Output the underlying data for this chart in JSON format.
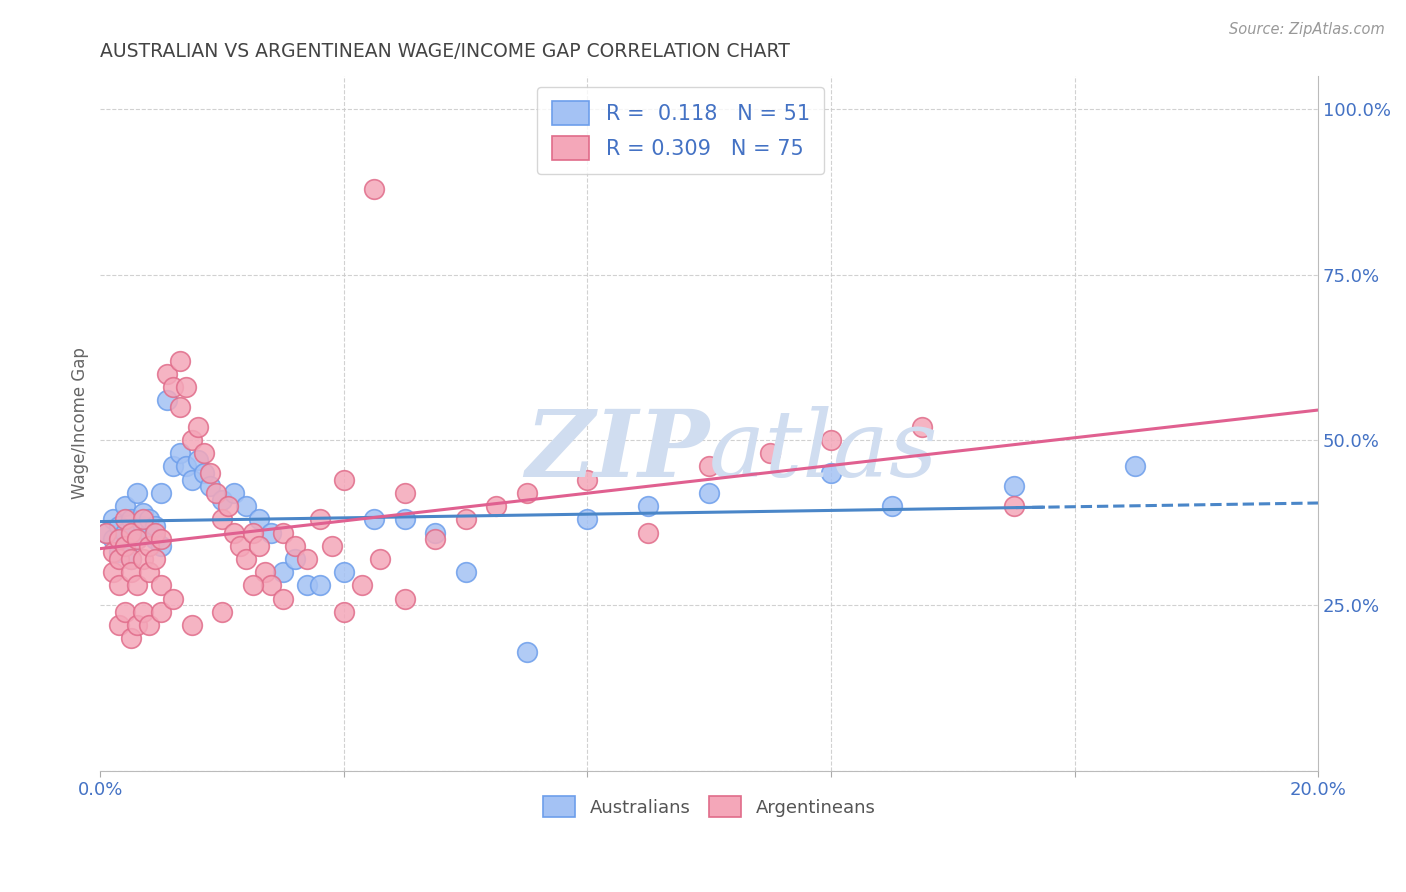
{
  "title": "AUSTRALIAN VS ARGENTINEAN WAGE/INCOME GAP CORRELATION CHART",
  "source": "Source: ZipAtlas.com",
  "ylabel": "Wage/Income Gap",
  "xmin": 0.0,
  "xmax": 0.2,
  "ymin": 0.0,
  "ymax": 1.05,
  "aus_color": "#a4c2f4",
  "arg_color": "#f4a7b9",
  "aus_edge_color": "#6d9eeb",
  "arg_edge_color": "#e06c8a",
  "aus_line_color": "#4a86c8",
  "arg_line_color": "#e06090",
  "watermark_color": "#d0ddf0",
  "R_aus": 0.118,
  "N_aus": 51,
  "R_arg": 0.309,
  "N_arg": 75,
  "background_color": "#ffffff",
  "grid_color": "#cccccc",
  "title_color": "#444444",
  "axis_label_color": "#4472c4",
  "aus_x": [
    0.001,
    0.002,
    0.002,
    0.003,
    0.003,
    0.004,
    0.004,
    0.004,
    0.005,
    0.005,
    0.005,
    0.006,
    0.006,
    0.007,
    0.007,
    0.008,
    0.008,
    0.009,
    0.009,
    0.01,
    0.01,
    0.011,
    0.012,
    0.013,
    0.014,
    0.015,
    0.016,
    0.017,
    0.018,
    0.02,
    0.022,
    0.024,
    0.026,
    0.028,
    0.03,
    0.032,
    0.034,
    0.036,
    0.04,
    0.045,
    0.05,
    0.055,
    0.06,
    0.07,
    0.08,
    0.09,
    0.1,
    0.12,
    0.13,
    0.15,
    0.17
  ],
  "aus_y": [
    0.36,
    0.35,
    0.38,
    0.37,
    0.33,
    0.36,
    0.34,
    0.4,
    0.38,
    0.36,
    0.32,
    0.35,
    0.42,
    0.37,
    0.39,
    0.36,
    0.38,
    0.35,
    0.37,
    0.34,
    0.42,
    0.56,
    0.46,
    0.48,
    0.46,
    0.44,
    0.47,
    0.45,
    0.43,
    0.41,
    0.42,
    0.4,
    0.38,
    0.36,
    0.3,
    0.32,
    0.28,
    0.28,
    0.3,
    0.38,
    0.38,
    0.36,
    0.3,
    0.18,
    0.38,
    0.4,
    0.42,
    0.45,
    0.4,
    0.43,
    0.46
  ],
  "arg_x": [
    0.001,
    0.002,
    0.002,
    0.003,
    0.003,
    0.003,
    0.004,
    0.004,
    0.005,
    0.005,
    0.005,
    0.006,
    0.006,
    0.007,
    0.007,
    0.008,
    0.008,
    0.009,
    0.009,
    0.01,
    0.01,
    0.011,
    0.012,
    0.013,
    0.013,
    0.014,
    0.015,
    0.016,
    0.017,
    0.018,
    0.019,
    0.02,
    0.021,
    0.022,
    0.023,
    0.024,
    0.025,
    0.026,
    0.027,
    0.028,
    0.03,
    0.032,
    0.034,
    0.036,
    0.038,
    0.04,
    0.043,
    0.046,
    0.05,
    0.055,
    0.06,
    0.065,
    0.07,
    0.08,
    0.09,
    0.1,
    0.11,
    0.12,
    0.135,
    0.15,
    0.003,
    0.004,
    0.005,
    0.006,
    0.007,
    0.008,
    0.01,
    0.012,
    0.015,
    0.02,
    0.025,
    0.03,
    0.04,
    0.05,
    0.045
  ],
  "arg_y": [
    0.36,
    0.33,
    0.3,
    0.35,
    0.32,
    0.28,
    0.38,
    0.34,
    0.36,
    0.32,
    0.3,
    0.35,
    0.28,
    0.32,
    0.38,
    0.34,
    0.3,
    0.36,
    0.32,
    0.35,
    0.28,
    0.6,
    0.58,
    0.62,
    0.55,
    0.58,
    0.5,
    0.52,
    0.48,
    0.45,
    0.42,
    0.38,
    0.4,
    0.36,
    0.34,
    0.32,
    0.36,
    0.34,
    0.3,
    0.28,
    0.36,
    0.34,
    0.32,
    0.38,
    0.34,
    0.44,
    0.28,
    0.32,
    0.42,
    0.35,
    0.38,
    0.4,
    0.42,
    0.44,
    0.36,
    0.46,
    0.48,
    0.5,
    0.52,
    0.4,
    0.22,
    0.24,
    0.2,
    0.22,
    0.24,
    0.22,
    0.24,
    0.26,
    0.22,
    0.24,
    0.28,
    0.26,
    0.24,
    0.26,
    0.88
  ]
}
